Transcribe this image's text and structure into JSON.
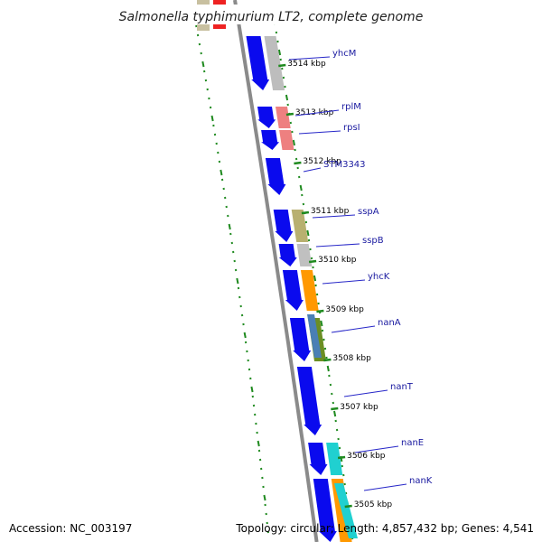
{
  "title": "Salmonella typhimurium LT2, complete genome",
  "footer": {
    "accession": "Accession: NC_003197",
    "topology": "Topology: circular; Length: 4,857,432 bp; Genes: 4,541"
  },
  "colors": {
    "forward_strand": "#0a0aee",
    "backbone": "#8a8a8a",
    "tick": "#1f8a1f",
    "label_line": "#2727c8",
    "label_text": "#1a1aa0"
  },
  "ticks": [
    {
      "label": "3514 kbp"
    },
    {
      "label": "3513 kbp"
    },
    {
      "label": "3512 kbp"
    },
    {
      "label": "3511 kbp"
    },
    {
      "label": "3510 kbp"
    },
    {
      "label": "3509 kbp"
    },
    {
      "label": "3508 kbp"
    },
    {
      "label": "3507 kbp"
    },
    {
      "label": "3506 kbp"
    },
    {
      "label": "3505 kbp"
    }
  ],
  "genes": [
    {
      "label": "yhcM",
      "color": "#bdbdbd"
    },
    {
      "label": "rplM",
      "color": "#ee8080"
    },
    {
      "label": "rpsI",
      "color": "#ee8080"
    },
    {
      "label": "STM3343",
      "color": ""
    },
    {
      "label": "sspA",
      "color": "#b8b070"
    },
    {
      "label": "sspB",
      "color": "#c0c0c0"
    },
    {
      "label": "yhcK",
      "color": "#ff9900"
    },
    {
      "label": "nanA",
      "color": "#6b8e23"
    },
    {
      "label": "nanT",
      "color": ""
    },
    {
      "label": "nanE",
      "color": "#20d0d0"
    },
    {
      "label": "nanK",
      "color": "#ff9900"
    }
  ]
}
